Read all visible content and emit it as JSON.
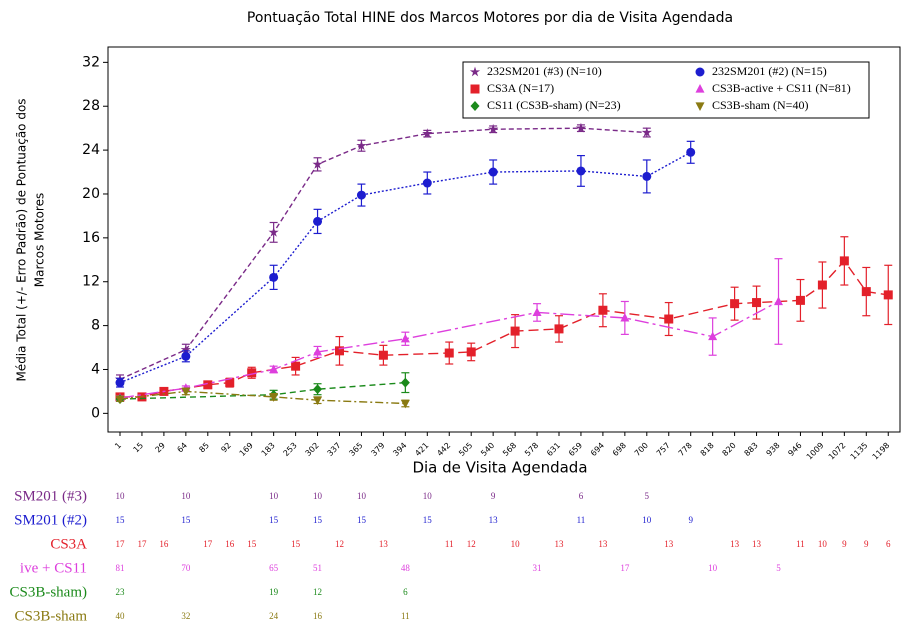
{
  "chart_data": {
    "type": "line",
    "title": "Pontuação Total HINE dos Marcos Motores por dia de Visita Agendada",
    "xlabel": "Dia de Visita Agendada",
    "ylabel": [
      "Média Total (+/- Erro Padrão) de Pontuação dos",
      "Marcos Motores"
    ],
    "categories": [
      "1",
      "15",
      "29",
      "64",
      "85",
      "92",
      "169",
      "183",
      "253",
      "302",
      "337",
      "365",
      "379",
      "394",
      "421",
      "442",
      "505",
      "540",
      "568",
      "578",
      "631",
      "659",
      "694",
      "698",
      "700",
      "757",
      "778",
      "818",
      "820",
      "883",
      "938",
      "946",
      "1009",
      "1072",
      "1135",
      "1198"
    ],
    "ylim": [
      -1.7,
      33.4
    ],
    "yticks": [
      0,
      4,
      8,
      12,
      16,
      20,
      24,
      28,
      32
    ],
    "grid": false,
    "legend": "upper right",
    "series": [
      {
        "name": "232SM201 (#3) (N=10)",
        "table_label": "SM201 (#3)",
        "color": "#7a2a88",
        "marker": "star",
        "x": [
          "1",
          "64",
          "183",
          "302",
          "365",
          "421",
          "540",
          "659",
          "700"
        ],
        "values": [
          3.1,
          5.8,
          16.5,
          22.7,
          24.4,
          25.5,
          25.9,
          26.0,
          25.6
        ],
        "errors": [
          0.4,
          0.5,
          0.9,
          0.6,
          0.5,
          0.3,
          0.3,
          0.3,
          0.4
        ],
        "n": [
          10,
          10,
          10,
          10,
          10,
          10,
          9,
          6,
          5
        ]
      },
      {
        "name": "232SM201 (#2) (N=15)",
        "table_label": "SM201 (#2)",
        "color": "#1d1dcf",
        "marker": "circle",
        "x": [
          "1",
          "64",
          "183",
          "302",
          "365",
          "421",
          "540",
          "659",
          "700",
          "778"
        ],
        "values": [
          2.8,
          5.2,
          12.4,
          17.5,
          19.9,
          21.0,
          22.0,
          22.1,
          21.6,
          23.8
        ],
        "errors": [
          0.4,
          0.5,
          1.1,
          1.1,
          1.0,
          1.0,
          1.1,
          1.4,
          1.5,
          1.0
        ],
        "n": [
          15,
          15,
          15,
          15,
          15,
          15,
          13,
          11,
          10,
          9
        ]
      },
      {
        "name": "CS3A (N=17)",
        "table_label": "CS3A",
        "color": "#e3202a",
        "marker": "square",
        "x": [
          "1",
          "15",
          "29",
          "85",
          "92",
          "169",
          "253",
          "337",
          "379",
          "442",
          "505",
          "568",
          "631",
          "694",
          "757",
          "820",
          "883",
          "946",
          "1009",
          "1072",
          "1135",
          "1198"
        ],
        "values": [
          1.5,
          1.5,
          2.0,
          2.6,
          2.8,
          3.7,
          4.3,
          5.7,
          5.3,
          5.5,
          5.6,
          7.5,
          7.7,
          9.4,
          8.6,
          10.0,
          10.1,
          10.3,
          11.7,
          13.9,
          11.1,
          10.8
        ],
        "errors": [
          0.3,
          0.3,
          0.3,
          0.3,
          0.4,
          0.5,
          0.8,
          1.3,
          0.9,
          1.0,
          0.8,
          1.5,
          1.2,
          1.5,
          1.5,
          1.5,
          1.5,
          1.9,
          2.1,
          2.2,
          2.2,
          2.7
        ],
        "n": [
          17,
          17,
          16,
          17,
          16,
          15,
          15,
          12,
          13,
          11,
          12,
          10,
          13,
          13,
          13,
          13,
          13,
          11,
          10,
          9,
          9,
          6
        ]
      },
      {
        "name": "CS3B-active + CS11 (N=81)",
        "table_label": "ive + CS11",
        "color": "#dd3fdd",
        "marker": "triangle-up",
        "x": [
          "1",
          "64",
          "183",
          "302",
          "394",
          "578",
          "698",
          "818",
          "938"
        ],
        "values": [
          1.4,
          2.3,
          4.0,
          5.6,
          6.8,
          9.2,
          8.7,
          7.0,
          10.2
        ],
        "errors": [
          0.2,
          0.2,
          0.3,
          0.5,
          0.6,
          0.8,
          1.5,
          1.7,
          3.9
        ],
        "n": [
          81,
          70,
          65,
          51,
          48,
          31,
          17,
          10,
          5
        ]
      },
      {
        "name": "CS11 (CS3B-sham) (N=23)",
        "table_label": "CS3B-sham)",
        "color": "#1b8a1b",
        "marker": "diamond",
        "x": [
          "1",
          "183",
          "302",
          "394"
        ],
        "values": [
          1.3,
          1.7,
          2.2,
          2.8
        ],
        "errors": [
          0.2,
          0.4,
          0.5,
          0.9
        ],
        "n": [
          23,
          19,
          12,
          6
        ]
      },
      {
        "name": "CS3B-sham (N=40)",
        "table_label": "CS3B-sham",
        "color": "#8a7a12",
        "marker": "triangle-down",
        "x": [
          "1",
          "64",
          "183",
          "302",
          "394"
        ],
        "values": [
          1.3,
          2.0,
          1.5,
          1.2,
          0.9
        ],
        "errors": [
          0.2,
          0.3,
          0.3,
          0.3,
          0.3
        ],
        "n": [
          40,
          32,
          24,
          16,
          11
        ]
      }
    ]
  }
}
